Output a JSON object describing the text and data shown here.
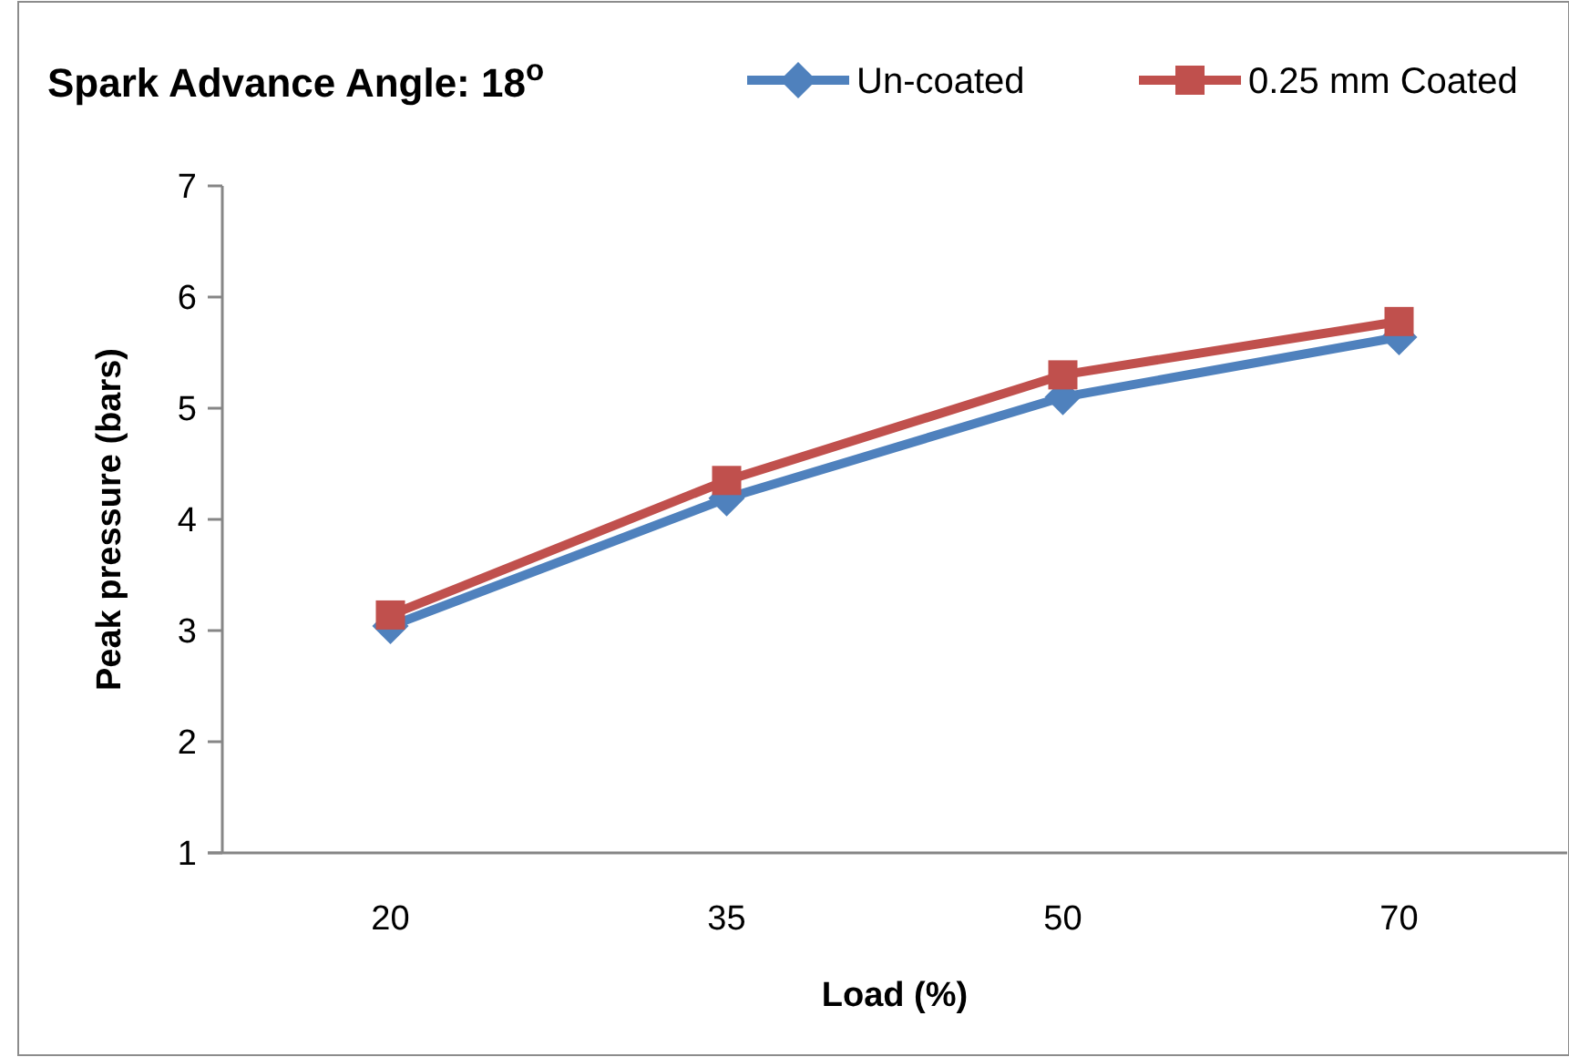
{
  "chart_data": {
    "type": "line",
    "title": "Spark Advance Angle: 18$^{o}$",
    "xlabel": "Load (%)",
    "ylabel": "Peak pressure (bars)",
    "categories": [
      "20",
      "35",
      "50",
      "70"
    ],
    "series": [
      {
        "name": "Un-coated",
        "color": "#4f81bd",
        "marker": "diamond",
        "values": [
          3.04,
          4.19,
          5.1,
          5.64
        ]
      },
      {
        "name": "0.25 mm Coated",
        "color": "#c0504d",
        "marker": "square",
        "values": [
          3.14,
          4.35,
          5.3,
          5.78
        ]
      }
    ],
    "ylim": [
      1,
      7
    ],
    "yticks": [
      1,
      2,
      3,
      4,
      5,
      6,
      7
    ],
    "grid": false,
    "legend": "top right",
    "line_style": "solid"
  }
}
